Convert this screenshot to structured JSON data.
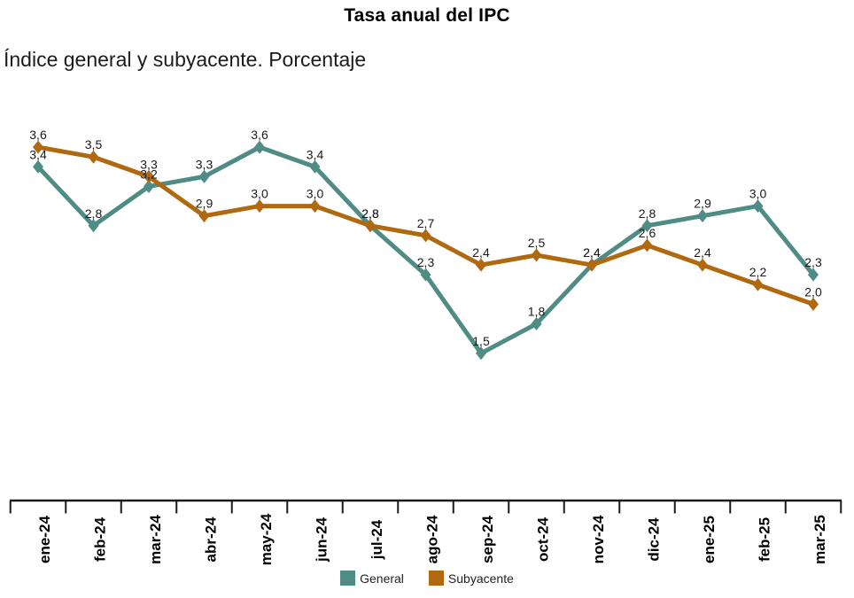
{
  "header": {
    "title": "Tasa anual del IPC",
    "subtitle": "Índice general y subyacente. Porcentaje"
  },
  "legend": {
    "items": [
      {
        "label": "General",
        "color": "#4E8C85"
      },
      {
        "label": "Subyacente",
        "color": "#B0690F"
      }
    ]
  },
  "chart_data": {
    "type": "line",
    "title": "Tasa anual del IPC",
    "subtitle": "Índice general y subyacente. Porcentaje",
    "categories": [
      "ene-24",
      "feb-24",
      "mar-24",
      "abr-24",
      "may-24",
      "jun-24",
      "jul-24",
      "ago-24",
      "sep-24",
      "oct-24",
      "nov-24",
      "dic-24",
      "ene-25",
      "feb-25",
      "mar-25"
    ],
    "series": [
      {
        "name": "General",
        "color": "#4E8C85",
        "marker": "diamond",
        "values": [
          3.4,
          2.8,
          3.2,
          3.3,
          3.6,
          3.4,
          2.8,
          2.3,
          1.5,
          1.8,
          2.4,
          2.8,
          2.9,
          3.0,
          2.3
        ]
      },
      {
        "name": "Subyacente",
        "color": "#B0690F",
        "marker": "diamond",
        "values": [
          3.6,
          3.5,
          3.3,
          2.9,
          3.0,
          3.0,
          2.8,
          2.7,
          2.4,
          2.5,
          2.4,
          2.6,
          2.4,
          2.2,
          2.0
        ]
      }
    ],
    "value_labels": true,
    "decimal_separator": ",",
    "xlabel": "",
    "ylabel": "",
    "ylim": [
      0,
      3.8
    ],
    "grid": false,
    "y_axis_visible": false,
    "legend_position": "bottom"
  }
}
